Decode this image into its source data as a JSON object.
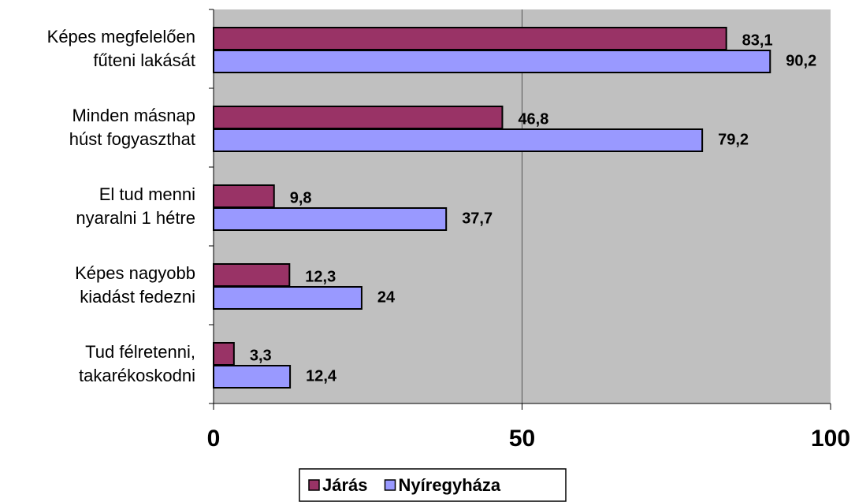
{
  "chart_data": {
    "type": "barh",
    "categories": [
      [
        "Képes megfelelően",
        "fűteni lakását"
      ],
      [
        "Minden másnap",
        "húst fogyaszthat"
      ],
      [
        "El tud menni",
        "nyaralni 1 hétre"
      ],
      [
        "Képes nagyobb",
        "kiadást fedezni"
      ],
      [
        "Tud félretenni,",
        "takarékoskodni"
      ]
    ],
    "series": [
      {
        "name": "Járás",
        "color": "#993366",
        "values": [
          83.1,
          46.8,
          9.8,
          12.3,
          3.3
        ],
        "value_labels": [
          "83,1",
          "46,8",
          "9,8",
          "12,3",
          "3,3"
        ]
      },
      {
        "name": "Nyíregyháza",
        "color": "#9999ff",
        "values": [
          90.2,
          79.2,
          37.7,
          24,
          12.4
        ],
        "value_labels": [
          "90,2",
          "79,2",
          "37,7",
          "24",
          "12,4"
        ]
      }
    ],
    "xlim": [
      0,
      100
    ],
    "xticks": [
      0,
      50,
      100
    ],
    "grid": true,
    "legend": "bottom",
    "plot_background": "#c0c0c0"
  }
}
